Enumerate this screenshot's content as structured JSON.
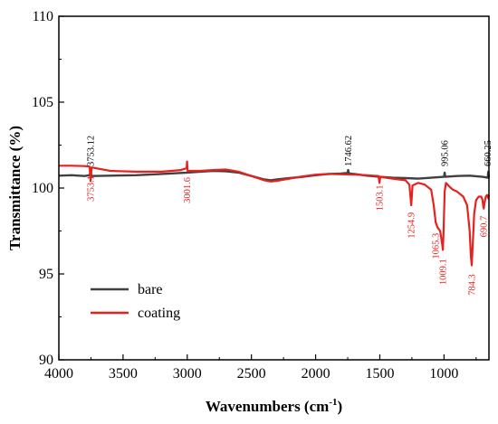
{
  "chart_data": {
    "type": "line",
    "title": "",
    "xlabel": "Wavenumbers (cm",
    "xlabel_sup": "-1",
    "xlabel_close": ")",
    "ylabel": "Transmittance (%)",
    "xlim": [
      4000,
      650
    ],
    "ylim": [
      90,
      110
    ],
    "x_reversed": true,
    "grid": false,
    "legend_placement": "bottom-left",
    "x_ticks": [
      4000,
      3500,
      3000,
      2500,
      2000,
      1500,
      1000
    ],
    "y_ticks": [
      90,
      95,
      100,
      105,
      110
    ],
    "series": [
      {
        "name": "bare",
        "color": "#404040",
        "points": [
          [
            4000,
            100.72
          ],
          [
            3900,
            100.75
          ],
          [
            3800,
            100.7
          ],
          [
            3760,
            100.75
          ],
          [
            3753,
            100.95
          ],
          [
            3745,
            100.7
          ],
          [
            3600,
            100.72
          ],
          [
            3400,
            100.75
          ],
          [
            3200,
            100.82
          ],
          [
            3000,
            100.9
          ],
          [
            2900,
            100.95
          ],
          [
            2800,
            101.0
          ],
          [
            2700,
            100.98
          ],
          [
            2600,
            100.9
          ],
          [
            2500,
            100.7
          ],
          [
            2400,
            100.5
          ],
          [
            2350,
            100.45
          ],
          [
            2300,
            100.5
          ],
          [
            2200,
            100.58
          ],
          [
            2100,
            100.65
          ],
          [
            2000,
            100.75
          ],
          [
            1900,
            100.82
          ],
          [
            1800,
            100.85
          ],
          [
            1750,
            100.88
          ],
          [
            1747,
            101.05
          ],
          [
            1740,
            100.85
          ],
          [
            1700,
            100.82
          ],
          [
            1600,
            100.72
          ],
          [
            1500,
            100.65
          ],
          [
            1400,
            100.6
          ],
          [
            1300,
            100.58
          ],
          [
            1200,
            100.55
          ],
          [
            1100,
            100.6
          ],
          [
            1000,
            100.65
          ],
          [
            995,
            100.9
          ],
          [
            990,
            100.65
          ],
          [
            900,
            100.7
          ],
          [
            800,
            100.72
          ],
          [
            700,
            100.65
          ],
          [
            660,
            100.6
          ],
          [
            655,
            100.95
          ],
          [
            650,
            100.6
          ]
        ]
      },
      {
        "name": "coating",
        "color": "#e8201e",
        "points": [
          [
            4000,
            101.3
          ],
          [
            3900,
            101.3
          ],
          [
            3800,
            101.28
          ],
          [
            3760,
            101.25
          ],
          [
            3753,
            100.4
          ],
          [
            3745,
            101.2
          ],
          [
            3600,
            101.0
          ],
          [
            3400,
            100.95
          ],
          [
            3200,
            100.95
          ],
          [
            3050,
            101.05
          ],
          [
            3005,
            101.15
          ],
          [
            3001,
            101.55
          ],
          [
            2997,
            101.0
          ],
          [
            2900,
            101.0
          ],
          [
            2800,
            101.05
          ],
          [
            2700,
            101.08
          ],
          [
            2600,
            100.95
          ],
          [
            2500,
            100.7
          ],
          [
            2400,
            100.45
          ],
          [
            2350,
            100.38
          ],
          [
            2300,
            100.42
          ],
          [
            2200,
            100.55
          ],
          [
            2100,
            100.68
          ],
          [
            2000,
            100.78
          ],
          [
            1900,
            100.82
          ],
          [
            1800,
            100.8
          ],
          [
            1700,
            100.78
          ],
          [
            1600,
            100.75
          ],
          [
            1510,
            100.7
          ],
          [
            1503,
            100.3
          ],
          [
            1496,
            100.65
          ],
          [
            1400,
            100.55
          ],
          [
            1300,
            100.45
          ],
          [
            1270,
            100.2
          ],
          [
            1255,
            99.0
          ],
          [
            1245,
            100.15
          ],
          [
            1200,
            100.3
          ],
          [
            1150,
            100.2
          ],
          [
            1100,
            99.9
          ],
          [
            1080,
            99.0
          ],
          [
            1065,
            98.0
          ],
          [
            1050,
            97.7
          ],
          [
            1030,
            97.5
          ],
          [
            1015,
            96.8
          ],
          [
            1009,
            96.4
          ],
          [
            1003,
            97.5
          ],
          [
            995,
            99.8
          ],
          [
            985,
            100.3
          ],
          [
            960,
            100.1
          ],
          [
            930,
            99.9
          ],
          [
            900,
            99.8
          ],
          [
            850,
            99.5
          ],
          [
            820,
            99.0
          ],
          [
            800,
            97.5
          ],
          [
            790,
            96.0
          ],
          [
            784,
            95.5
          ],
          [
            778,
            96.5
          ],
          [
            765,
            98.5
          ],
          [
            750,
            99.3
          ],
          [
            730,
            99.5
          ],
          [
            710,
            99.5
          ],
          [
            700,
            99.3
          ],
          [
            695,
            99.0
          ],
          [
            690,
            98.8
          ],
          [
            685,
            99.1
          ],
          [
            675,
            99.5
          ],
          [
            665,
            99.6
          ],
          [
            655,
            99.4
          ],
          [
            650,
            99.6
          ]
        ]
      }
    ],
    "annotations_top": [
      {
        "x": 3753.12,
        "label": "3753.12"
      },
      {
        "x": 1746.62,
        "label": "1746.62"
      },
      {
        "x": 995.06,
        "label": "995.06"
      },
      {
        "x": 660.25,
        "label": "660.25"
      }
    ],
    "annotations_bottom": [
      {
        "x": 3753.1,
        "label": "3753.1"
      },
      {
        "x": 3001.6,
        "label": "3001.6"
      },
      {
        "x": 1503.1,
        "label": "1503.1"
      },
      {
        "x": 1254.9,
        "label": "1254.9"
      },
      {
        "x": 1065.3,
        "label": "1065.3"
      },
      {
        "x": 1009.1,
        "label": "1009.1"
      },
      {
        "x": 784.3,
        "label": "784.3"
      },
      {
        "x": 690.7,
        "label": "690.7"
      }
    ],
    "annotation_colors": {
      "top": "#000000",
      "bottom": "#e8201e"
    }
  }
}
